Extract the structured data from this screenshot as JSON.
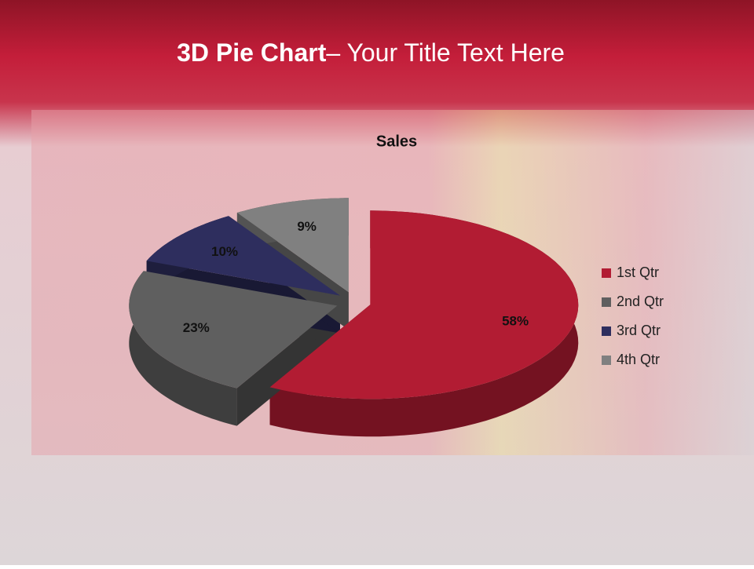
{
  "slide": {
    "title_bold": "3D Pie Chart",
    "title_rest": "– Your Title Text Here"
  },
  "chart_data": {
    "type": "pie3d",
    "title": "Sales",
    "categories": [
      "1st Qtr",
      "2nd Qtr",
      "3rd Qtr",
      "4th Qtr"
    ],
    "values": [
      58,
      23,
      10,
      9
    ],
    "value_labels": [
      "58%",
      "23%",
      "10%",
      "9%"
    ],
    "colors": [
      "#b21c33",
      "#5f5f5f",
      "#2e2e5e",
      "#808080"
    ],
    "legend": "right"
  }
}
